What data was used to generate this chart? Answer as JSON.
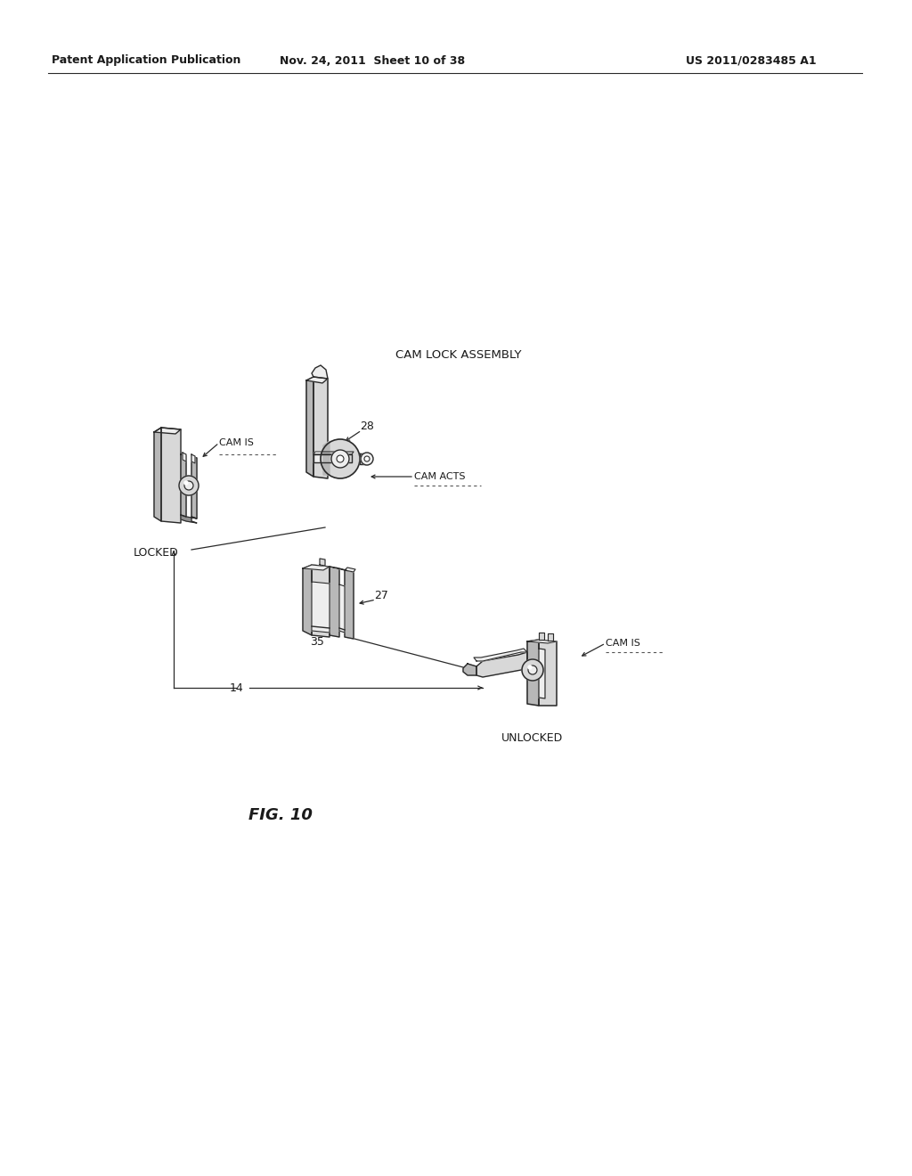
{
  "header_left": "Patent Application Publication",
  "header_mid": "Nov. 24, 2011  Sheet 10 of 38",
  "header_right": "US 2011/0283485 A1",
  "fig_label": "FIG. 10",
  "cam_lock_title": "CAM LOCK ASSEMBLY",
  "bg_color": "#ffffff",
  "text_color": "#1a1a1a",
  "line_color": "#2a2a2a",
  "gray_dark": "#909090",
  "gray_mid": "#b8b8b8",
  "gray_light": "#d8d8d8",
  "gray_xlight": "#eeeeee",
  "white": "#ffffff"
}
